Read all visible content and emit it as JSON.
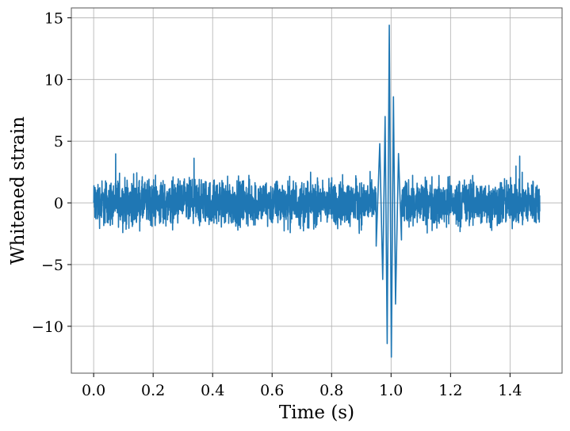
{
  "chart_data": {
    "type": "line",
    "title": "",
    "xlabel": "Time (s)",
    "ylabel": "Whitened strain",
    "xlim": [
      -0.075,
      1.575
    ],
    "ylim": [
      -13.8,
      15.8
    ],
    "xticks": [
      0.0,
      0.2,
      0.4,
      0.6,
      0.8,
      1.0,
      1.2,
      1.4
    ],
    "xtick_labels": [
      "0.0",
      "0.2",
      "0.4",
      "0.6",
      "0.8",
      "1.0",
      "1.2",
      "1.4"
    ],
    "yticks": [
      -10,
      -5,
      0,
      5,
      10,
      15
    ],
    "ytick_labels": [
      "−10",
      "−5",
      "0",
      "5",
      "10",
      "15"
    ],
    "grid": true,
    "series": [
      {
        "color": "#1f77b4",
        "noise_amplitude": 2.0,
        "x_range": [
          0.0,
          1.5
        ],
        "chirp_peaks": [
          {
            "x": 0.95,
            "y": -3.5
          },
          {
            "x": 0.962,
            "y": 4.8
          },
          {
            "x": 0.972,
            "y": -6.2
          },
          {
            "x": 0.98,
            "y": 7.0
          },
          {
            "x": 0.987,
            "y": -11.4
          },
          {
            "x": 0.994,
            "y": 14.4
          },
          {
            "x": 1.001,
            "y": -12.5
          },
          {
            "x": 1.008,
            "y": 8.6
          },
          {
            "x": 1.015,
            "y": -8.2
          },
          {
            "x": 1.025,
            "y": 4.0
          },
          {
            "x": 1.035,
            "y": -3.0
          }
        ]
      }
    ]
  }
}
